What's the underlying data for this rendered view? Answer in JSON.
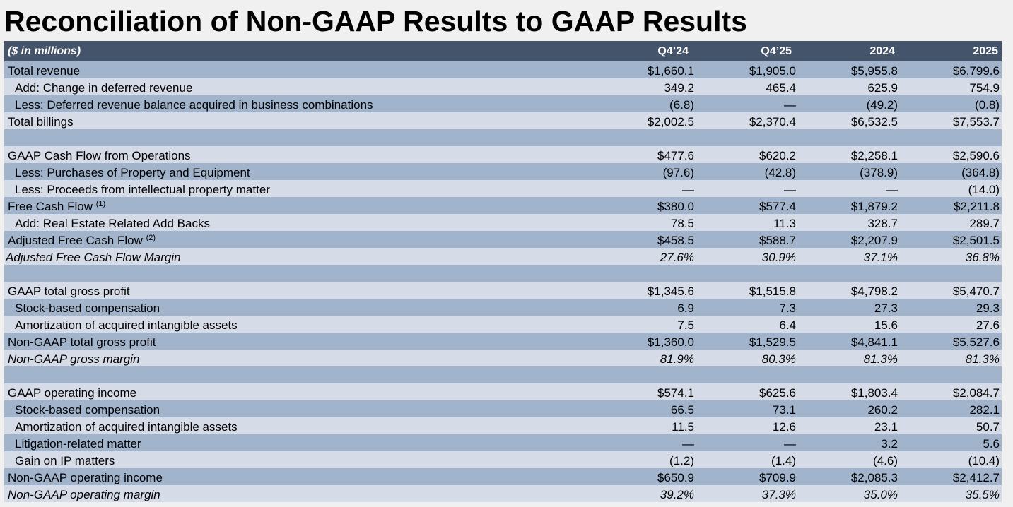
{
  "title": "Reconciliation of Non-GAAP Results to GAAP Results",
  "table": {
    "header": {
      "label": "($ in millions)",
      "cols": [
        "Q4’24",
        "Q4’25",
        "2024",
        "2025"
      ]
    },
    "rows": [
      {
        "label": "Total revenue",
        "vals": [
          "$1,660.1",
          "$1,905.0",
          "$5,955.8",
          "$6,799.6"
        ]
      },
      {
        "label": "Add: Change in deferred revenue",
        "vals": [
          "349.2",
          "465.4",
          "625.9",
          "754.9"
        ]
      },
      {
        "label": "Less: Deferred revenue balance acquired in business combinations",
        "vals": [
          "(6.8)",
          "—",
          "(49.2)",
          "(0.8)"
        ]
      },
      {
        "label": "Total billings",
        "vals": [
          "$2,002.5",
          "$2,370.4",
          "$6,532.5",
          "$7,553.7"
        ]
      },
      {
        "label": "",
        "vals": [
          "",
          "",
          "",
          ""
        ]
      },
      {
        "label": "GAAP Cash Flow from Operations",
        "vals": [
          "$477.6",
          "$620.2",
          "$2,258.1",
          "$2,590.6"
        ]
      },
      {
        "label": "Less: Purchases of Property and Equipment",
        "vals": [
          "(97.6)",
          "(42.8)",
          "(378.9)",
          "(364.8)"
        ]
      },
      {
        "label": "Less: Proceeds from intellectual property matter",
        "vals": [
          "—",
          "—",
          "—",
          "(14.0)"
        ]
      },
      {
        "label": "Free Cash Flow",
        "sup": "(1)",
        "vals": [
          "$380.0",
          "$577.4",
          "$1,879.2",
          "$2,211.8"
        ]
      },
      {
        "label": "Add: Real Estate Related Add Backs",
        "vals": [
          "78.5",
          "11.3",
          "328.7",
          "289.7"
        ]
      },
      {
        "label": "Adjusted Free Cash Flow",
        "sup": "(2)",
        "vals": [
          "$458.5",
          "$588.7",
          "$2,207.9",
          "$2,501.5"
        ]
      },
      {
        "label": "Adjusted Free Cash Flow Margin",
        "vals": [
          "27.6%",
          "30.9%",
          "37.1%",
          "36.8%"
        ]
      },
      {
        "label": "",
        "vals": [
          "",
          "",
          "",
          ""
        ]
      },
      {
        "label": "GAAP total gross profit",
        "vals": [
          "$1,345.6",
          "$1,515.8",
          "$4,798.2",
          "$5,470.7"
        ]
      },
      {
        "label": "Stock-based compensation",
        "vals": [
          "6.9",
          "7.3",
          "27.3",
          "29.3"
        ]
      },
      {
        "label": "Amortization of acquired intangible assets",
        "vals": [
          "7.5",
          "6.4",
          "15.6",
          "27.6"
        ]
      },
      {
        "label": "Non-GAAP total gross profit",
        "vals": [
          "$1,360.0",
          "$1,529.5",
          "$4,841.1",
          "$5,527.6"
        ]
      },
      {
        "label": "Non-GAAP gross margin",
        "vals": [
          "81.9%",
          "80.3%",
          "81.3%",
          "81.3%"
        ]
      },
      {
        "label": "",
        "vals": [
          "",
          "",
          "",
          ""
        ]
      },
      {
        "label": "GAAP operating income",
        "vals": [
          "$574.1",
          "$625.6",
          "$1,803.4",
          "$2,084.7"
        ]
      },
      {
        "label": "Stock-based compensation",
        "vals": [
          "66.5",
          "73.1",
          "260.2",
          "282.1"
        ]
      },
      {
        "label": "Amortization of acquired intangible assets",
        "vals": [
          "11.5",
          "12.6",
          "23.1",
          "50.7"
        ]
      },
      {
        "label": "Litigation-related matter",
        "vals": [
          "—",
          "—",
          "3.2",
          "5.6"
        ]
      },
      {
        "label": "Gain on IP matters",
        "vals": [
          "(1.2)",
          "(1.4)",
          "(4.6)",
          "(10.4)"
        ]
      },
      {
        "label": "Non-GAAP operating income",
        "vals": [
          "$650.9",
          "$709.9",
          "$2,085.3",
          "$2,412.7"
        ]
      },
      {
        "label": "Non-GAAP operating margin",
        "vals": [
          "39.2%",
          "37.3%",
          "35.0%",
          "35.5%"
        ]
      }
    ]
  }
}
